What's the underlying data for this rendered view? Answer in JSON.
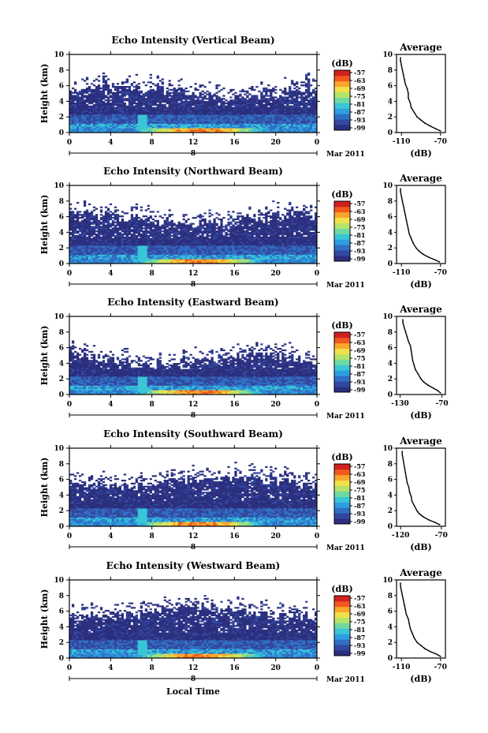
{
  "colors": {
    "colormap": [
      "#2b2f7e",
      "#33479e",
      "#2f6fc4",
      "#2d9ee0",
      "#39c6d6",
      "#6fd9a4",
      "#b4e36a",
      "#f1e14a",
      "#f9a72c",
      "#f2591f",
      "#d2201f"
    ],
    "echo_base": "#3b3f80",
    "profile_line": "#000000"
  },
  "shared": {
    "x_axis_label": "Local Time",
    "date_label": "Mar 2011",
    "day_label": "8",
    "y_axis_label": "Height (km)",
    "colorbar_unit": "(dB)",
    "avg_title": "Average",
    "avg_unit": "(dB)"
  },
  "chart_data": [
    {
      "type": "heatmap",
      "title": "Echo Intensity (Vertical Beam)",
      "xlabel": "",
      "ylabel": "Height (km)",
      "x_ticks": [
        "0",
        "4",
        "8",
        "12",
        "16",
        "20",
        "0"
      ],
      "y_ticks": [
        "0",
        "2",
        "4",
        "6",
        "8",
        "10"
      ],
      "xlim": [
        0,
        24
      ],
      "ylim": [
        0,
        10
      ],
      "colorbar": {
        "unit": "(dB)",
        "ticks": [
          "-57",
          "-63",
          "-69",
          "-75",
          "-81",
          "-87",
          "-93",
          "-99"
        ]
      },
      "echo_top_km": 5.4,
      "profile": {
        "title": "Average",
        "xlabel": "(dB)",
        "x_ticks": [
          "-110",
          "-70"
        ],
        "xlim": [
          -115,
          -65
        ],
        "y_ticks": [
          "0",
          "2",
          "4",
          "6",
          "8",
          "10"
        ],
        "heights": [
          0.2,
          0.5,
          0.8,
          1.2,
          1.6,
          2.0,
          2.6,
          3.2,
          3.8,
          4.4,
          5.0,
          5.6,
          6.2,
          6.8,
          7.4,
          8.0,
          8.6,
          9.2,
          9.6
        ],
        "values": [
          -70,
          -75,
          -80,
          -86,
          -90,
          -94,
          -97,
          -100,
          -101,
          -103,
          -103,
          -104,
          -106,
          -107,
          -108,
          -109,
          -110,
          -111,
          -111
        ]
      }
    },
    {
      "type": "heatmap",
      "title": "Echo Intensity (Northward Beam)",
      "xlabel": "",
      "ylabel": "Height (km)",
      "x_ticks": [
        "0",
        "4",
        "8",
        "12",
        "16",
        "20",
        "0"
      ],
      "y_ticks": [
        "0",
        "2",
        "4",
        "6",
        "8",
        "10"
      ],
      "xlim": [
        0,
        24
      ],
      "ylim": [
        0,
        10
      ],
      "colorbar": {
        "unit": "(dB)",
        "ticks": [
          "-57",
          "-63",
          "-69",
          "-75",
          "-81",
          "-87",
          "-93",
          "-99"
        ]
      },
      "echo_top_km": 5.8,
      "profile": {
        "title": "Average",
        "xlabel": "(dB)",
        "x_ticks": [
          "-110",
          "-70"
        ],
        "xlim": [
          -115,
          -65
        ],
        "y_ticks": [
          "0",
          "2",
          "4",
          "6",
          "8",
          "10"
        ],
        "heights": [
          0.2,
          0.5,
          0.8,
          1.2,
          1.6,
          2.0,
          2.6,
          3.2,
          3.8,
          4.4,
          5.0,
          5.6,
          6.2,
          6.8,
          7.4,
          8.0,
          8.6,
          9.2,
          9.6
        ],
        "values": [
          -71,
          -76,
          -82,
          -88,
          -92,
          -95,
          -98,
          -100,
          -102,
          -103,
          -104,
          -105,
          -106,
          -107,
          -108,
          -109,
          -110,
          -111,
          -111
        ]
      }
    },
    {
      "type": "heatmap",
      "title": "Echo Intensity (Eastward Beam)",
      "xlabel": "",
      "ylabel": "Height (km)",
      "x_ticks": [
        "0",
        "4",
        "8",
        "12",
        "16",
        "20",
        "0"
      ],
      "y_ticks": [
        "0",
        "2",
        "4",
        "6",
        "8",
        "10"
      ],
      "xlim": [
        0,
        24
      ],
      "ylim": [
        0,
        10
      ],
      "colorbar": {
        "unit": "(dB)",
        "ticks": [
          "-57",
          "-63",
          "-69",
          "-75",
          "-81",
          "-87",
          "-93",
          "-99"
        ]
      },
      "echo_top_km": 4.6,
      "profile": {
        "title": "Average",
        "xlabel": "(dB)",
        "x_ticks": [
          "-130",
          "-70"
        ],
        "xlim": [
          -135,
          -65
        ],
        "y_ticks": [
          "0",
          "2",
          "4",
          "6",
          "8",
          "10"
        ],
        "heights": [
          0.2,
          0.5,
          0.8,
          1.2,
          1.6,
          2.0,
          2.6,
          3.2,
          3.8,
          4.4,
          5.0,
          5.6,
          6.2,
          6.8,
          7.4,
          8.0,
          8.6,
          9.2,
          9.6
        ],
        "values": [
          -72,
          -76,
          -82,
          -90,
          -96,
          -100,
          -104,
          -108,
          -110,
          -112,
          -113,
          -114,
          -115,
          -118,
          -120,
          -122,
          -124,
          -126,
          -126
        ]
      }
    },
    {
      "type": "heatmap",
      "title": "Echo Intensity (Southward Beam)",
      "xlabel": "",
      "ylabel": "Height (km)",
      "x_ticks": [
        "0",
        "4",
        "8",
        "12",
        "16",
        "20",
        "0"
      ],
      "y_ticks": [
        "0",
        "2",
        "4",
        "6",
        "8",
        "10"
      ],
      "xlim": [
        0,
        24
      ],
      "ylim": [
        0,
        10
      ],
      "colorbar": {
        "unit": "(dB)",
        "ticks": [
          "-57",
          "-63",
          "-69",
          "-75",
          "-81",
          "-87",
          "-93",
          "-99"
        ]
      },
      "echo_top_km": 5.9,
      "profile": {
        "title": "Average",
        "xlabel": "(dB)",
        "x_ticks": [
          "-120",
          "-70"
        ],
        "xlim": [
          -125,
          -65
        ],
        "y_ticks": [
          "0",
          "2",
          "4",
          "6",
          "8",
          "10"
        ],
        "heights": [
          0.2,
          0.5,
          0.8,
          1.2,
          1.6,
          2.0,
          2.6,
          3.2,
          3.8,
          4.4,
          5.0,
          5.6,
          6.2,
          6.8,
          7.4,
          8.0,
          8.6,
          9.2,
          9.6
        ],
        "values": [
          -72,
          -78,
          -85,
          -92,
          -97,
          -100,
          -103,
          -106,
          -107,
          -109,
          -110,
          -112,
          -113,
          -114,
          -115,
          -116,
          -117,
          -118,
          -118
        ]
      }
    },
    {
      "type": "heatmap",
      "title": "Echo Intensity (Westward Beam)",
      "xlabel": "Local Time",
      "ylabel": "Height (km)",
      "x_ticks": [
        "0",
        "4",
        "8",
        "12",
        "16",
        "20",
        "0"
      ],
      "y_ticks": [
        "0",
        "2",
        "4",
        "6",
        "8",
        "10"
      ],
      "xlim": [
        0,
        24
      ],
      "ylim": [
        0,
        10
      ],
      "colorbar": {
        "unit": "(dB)",
        "ticks": [
          "-57",
          "-63",
          "-69",
          "-75",
          "-81",
          "-87",
          "-93",
          "-99"
        ]
      },
      "echo_top_km": 6.1,
      "profile": {
        "title": "Average",
        "xlabel": "(dB)",
        "x_ticks": [
          "-110",
          "-70"
        ],
        "xlim": [
          -115,
          -65
        ],
        "y_ticks": [
          "0",
          "2",
          "4",
          "6",
          "8",
          "10"
        ],
        "heights": [
          0.2,
          0.5,
          0.8,
          1.2,
          1.6,
          2.0,
          2.6,
          3.2,
          3.8,
          4.4,
          5.0,
          5.6,
          6.2,
          6.8,
          7.4,
          8.0,
          8.6,
          9.2,
          9.6
        ],
        "values": [
          -70,
          -74,
          -80,
          -86,
          -90,
          -94,
          -97,
          -99,
          -101,
          -102,
          -103,
          -105,
          -106,
          -107,
          -108,
          -109,
          -110,
          -111,
          -111
        ]
      }
    }
  ]
}
